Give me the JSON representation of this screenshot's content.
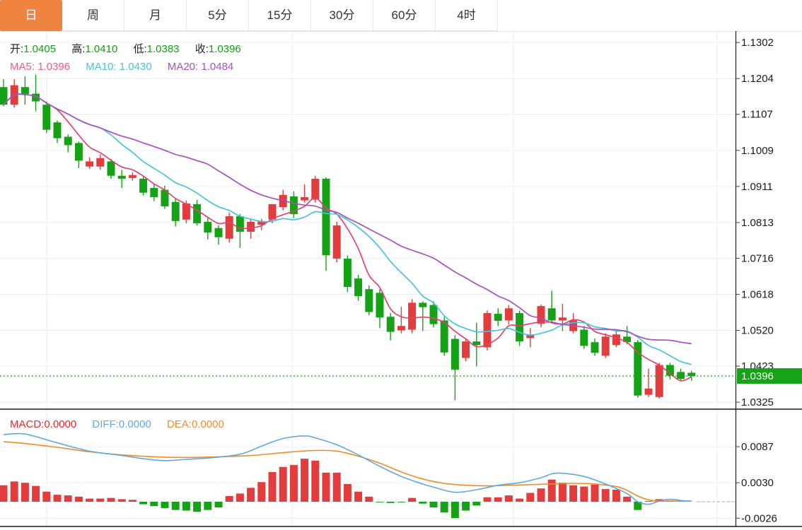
{
  "tabs": [
    {
      "label": "日",
      "active": true
    },
    {
      "label": "周",
      "active": false
    },
    {
      "label": "月",
      "active": false
    },
    {
      "label": "5分",
      "active": false
    },
    {
      "label": "15分",
      "active": false
    },
    {
      "label": "30分",
      "active": false
    },
    {
      "label": "60分",
      "active": false
    },
    {
      "label": "4时",
      "active": false
    }
  ],
  "ohlc_legend": {
    "open_label": "开:",
    "open": "1.0405",
    "high_label": "高:",
    "high": "1.0410",
    "low_label": "低:",
    "low": "1.0383",
    "close_label": "收:",
    "close": "1.0396"
  },
  "ma_legend": {
    "ma5_label": "MA5:",
    "ma5": "1.0396",
    "ma10_label": "MA10:",
    "ma10": "1.0430",
    "ma20_label": "MA20:",
    "ma20": "1.0484"
  },
  "macd_legend": {
    "macd_label": "MACD:",
    "macd": "0.0000",
    "diff_label": "DIFF:",
    "diff": "0.0000",
    "dea_label": "DEA:",
    "dea": "0.0000"
  },
  "price_marker": "1.0396",
  "colors": {
    "up": "#e23c3c",
    "down": "#16a216",
    "ma5": "#e0436e",
    "ma5_text": "#ee5a8a",
    "ma10": "#45c4de",
    "ma20": "#a94fc0",
    "diff": "#63a8dc",
    "dea": "#f08c28",
    "macd_text": "#e02b2b",
    "value_green": "#0fa30f",
    "marker_bg": "#17a317",
    "accent_tab": "#ef8340",
    "grid": "#e9eef4",
    "axis_line": "#1a1a1a",
    "zero_dash": "#d8d8d8",
    "zero_ext_dash": "#8fc1e8"
  },
  "chart_data": [
    {
      "type": "candlestick",
      "title": "日K线 (daily candlestick, EUR/USD-style quote)",
      "ylim": [
        1.0306,
        1.1333
      ],
      "y_ticks": [
        "1.1302",
        "1.1204",
        "1.1107",
        "1.1009",
        "1.0911",
        "1.0813",
        "1.0716",
        "1.0618",
        "1.0520",
        "1.0423",
        "1.0325"
      ],
      "last_price": 1.0396,
      "ma_overlays": [
        {
          "name": "MA5",
          "period": 5,
          "color_key": "ma5"
        },
        {
          "name": "MA10",
          "period": 10,
          "color_key": "ma10"
        },
        {
          "name": "MA20",
          "period": 20,
          "color_key": "ma20"
        }
      ],
      "candles": [
        [
          1.1181,
          1.1202,
          1.1129,
          1.1133
        ],
        [
          1.1133,
          1.1202,
          1.1125,
          1.1186
        ],
        [
          1.1181,
          1.121,
          1.1133,
          1.1162
        ],
        [
          1.1163,
          1.1215,
          1.1115,
          1.1142
        ],
        [
          1.1133,
          1.1142,
          1.1056,
          1.1065
        ],
        [
          1.1085,
          1.109,
          1.1029,
          1.1042
        ],
        [
          1.1046,
          1.1052,
          1.1004,
          1.1023
        ],
        [
          1.1029,
          1.1033,
          1.0961,
          1.0981
        ],
        [
          1.0965,
          1.099,
          1.0959,
          1.0979
        ],
        [
          1.0965,
          1.0998,
          1.0956,
          1.0988
        ],
        [
          1.0979,
          1.0986,
          1.0932,
          1.094
        ],
        [
          1.094,
          1.0956,
          1.0907,
          1.0932
        ],
        [
          1.0934,
          1.095,
          1.0927,
          1.0942
        ],
        [
          1.0932,
          1.094,
          1.0886,
          1.0894
        ],
        [
          1.0907,
          1.0917,
          1.0871,
          1.0882
        ],
        [
          1.0902,
          1.0913,
          1.085,
          1.0857
        ],
        [
          1.0869,
          1.0879,
          1.0802,
          1.0817
        ],
        [
          1.0821,
          1.0873,
          1.0811,
          1.0865
        ],
        [
          1.0863,
          1.0875,
          1.0805,
          1.0811
        ],
        [
          1.0815,
          1.0825,
          1.0767,
          1.0786
        ],
        [
          1.0798,
          1.0805,
          1.0753,
          1.0773
        ],
        [
          1.0769,
          1.084,
          1.0759,
          1.083
        ],
        [
          1.083,
          1.0836,
          1.0744,
          1.0788
        ],
        [
          1.0788,
          1.0821,
          1.0769,
          1.0815
        ],
        [
          1.0807,
          1.0823,
          1.0792,
          1.0817
        ],
        [
          1.0821,
          1.0844,
          1.0811,
          1.0863
        ],
        [
          1.0855,
          1.0902,
          1.0846,
          1.0888
        ],
        [
          1.0884,
          1.0898,
          1.0825,
          1.0836
        ],
        [
          1.0873,
          1.0917,
          1.0867,
          1.0882
        ],
        [
          1.0875,
          1.094,
          1.0867,
          1.0932
        ],
        [
          1.0932,
          1.0936,
          1.0682,
          1.0724
        ],
        [
          1.0715,
          1.0815,
          1.0705,
          1.0805
        ],
        [
          1.0715,
          1.0724,
          1.0624,
          1.0638
        ],
        [
          1.0661,
          1.0671,
          1.0601,
          1.0613
        ],
        [
          1.0632,
          1.0642,
          1.0561,
          1.057
        ],
        [
          1.0622,
          1.0632,
          1.0526,
          1.0555
        ],
        [
          1.0557,
          1.0567,
          1.0493,
          1.0516
        ],
        [
          1.052,
          1.0584,
          1.0512,
          1.0532
        ],
        [
          1.0522,
          1.0605,
          1.0512,
          1.0595
        ],
        [
          1.0595,
          1.0599,
          1.0518,
          1.0583
        ],
        [
          1.0589,
          1.0599,
          1.0528,
          1.0537
        ],
        [
          1.0547,
          1.0557,
          1.0451,
          1.046
        ],
        [
          1.0497,
          1.0507,
          1.033,
          1.0413
        ],
        [
          1.0445,
          1.0499,
          1.0436,
          1.049
        ],
        [
          1.049,
          1.0541,
          1.0422,
          1.048
        ],
        [
          1.0474,
          1.0574,
          1.0465,
          1.0567
        ],
        [
          1.0565,
          1.058,
          1.0532,
          1.0546
        ],
        [
          1.0547,
          1.0589,
          1.0536,
          1.058
        ],
        [
          1.0567,
          1.0574,
          1.0478,
          1.049
        ],
        [
          1.0499,
          1.0526,
          1.0474,
          1.0509
        ],
        [
          1.0538,
          1.059,
          1.0528,
          1.0586
        ],
        [
          1.058,
          1.0628,
          1.0541,
          1.0547
        ],
        [
          1.0547,
          1.0592,
          1.0518,
          1.0555
        ],
        [
          1.0518,
          1.0567,
          1.0512,
          1.0547
        ],
        [
          1.0522,
          1.0532,
          1.047,
          1.0478
        ],
        [
          1.0488,
          1.0498,
          1.0451,
          1.0459
        ],
        [
          1.0451,
          1.0512,
          1.0445,
          1.0503
        ],
        [
          1.048,
          1.0522,
          1.0474,
          1.0509
        ],
        [
          1.0503,
          1.0532,
          1.0482,
          1.0488
        ],
        [
          1.0488,
          1.0494,
          1.0337,
          1.0343
        ],
        [
          1.0345,
          1.0416,
          1.0339,
          1.0362
        ],
        [
          1.0339,
          1.0432,
          1.0335,
          1.0426
        ],
        [
          1.0426,
          1.0432,
          1.0387,
          1.0397
        ],
        [
          1.0407,
          1.0416,
          1.0383,
          1.0388
        ],
        [
          1.0405,
          1.041,
          1.0383,
          1.0396
        ]
      ]
    },
    {
      "type": "bar",
      "title": "MACD(12,26,9)",
      "ylim": [
        -0.00391,
        0.01452
      ],
      "y_ticks": [
        "0.0087",
        "0.0030",
        "-0.0026"
      ],
      "hist": [
        0.0026,
        0.0032,
        0.003,
        0.0025,
        0.0016,
        0.0011,
        0.001,
        0.0008,
        0.0005,
        0.0005,
        0.0006,
        0.0004,
        0.0003,
        -0.0004,
        -0.0007,
        -0.001,
        -0.0013,
        -0.0014,
        -0.0016,
        -0.0013,
        -0.0009,
        0.0009,
        0.0013,
        0.0022,
        0.0031,
        0.0047,
        0.0055,
        0.0058,
        0.0068,
        0.0065,
        0.0046,
        0.0046,
        0.0028,
        0.0016,
        0.0008,
        -0.0001,
        -0.0002,
        -0.0001,
        0.0006,
        -0.0003,
        -0.0009,
        -0.0017,
        -0.0026,
        -0.0014,
        -0.0006,
        0.0007,
        0.0007,
        0.001,
        0.0005,
        0.0014,
        0.0021,
        0.0035,
        0.003,
        0.0026,
        0.0024,
        0.0027,
        0.002,
        0.0019,
        0.0008,
        -0.0013,
        0.0001,
        0.0004,
        0.0002,
        0.0001,
        0.0
      ],
      "diff_points": [
        [
          0,
          0.0106
        ],
        [
          2,
          0.0107
        ],
        [
          5,
          0.0093
        ],
        [
          8,
          0.008
        ],
        [
          11,
          0.0073
        ],
        [
          13,
          0.0068
        ],
        [
          15,
          0.0065
        ],
        [
          17,
          0.0067
        ],
        [
          19,
          0.0069
        ],
        [
          22,
          0.0075
        ],
        [
          24,
          0.0088
        ],
        [
          26,
          0.01
        ],
        [
          28,
          0.0104
        ],
        [
          29,
          0.0101
        ],
        [
          31,
          0.009
        ],
        [
          33,
          0.0074
        ],
        [
          35,
          0.0056
        ],
        [
          37,
          0.004
        ],
        [
          39,
          0.0028
        ],
        [
          40,
          0.0023
        ],
        [
          42,
          0.0015
        ],
        [
          44,
          0.0019
        ],
        [
          46,
          0.0026
        ],
        [
          48,
          0.003
        ],
        [
          50,
          0.0038
        ],
        [
          51,
          0.0044
        ],
        [
          52,
          0.0045
        ],
        [
          54,
          0.004
        ],
        [
          56,
          0.0028
        ],
        [
          58,
          0.0013
        ],
        [
          59,
          0.0
        ],
        [
          60,
          -0.0004
        ],
        [
          61,
          0.0001
        ],
        [
          62,
          0.0004
        ],
        [
          63,
          0.0002
        ],
        [
          64,
          0.0001
        ]
      ],
      "dea_points": [
        [
          0,
          0.0095
        ],
        [
          2,
          0.0092
        ],
        [
          5,
          0.0086
        ],
        [
          8,
          0.0079
        ],
        [
          11,
          0.0074
        ],
        [
          14,
          0.0071
        ],
        [
          17,
          0.007
        ],
        [
          20,
          0.0071
        ],
        [
          23,
          0.0073
        ],
        [
          25,
          0.0076
        ],
        [
          27,
          0.0079
        ],
        [
          29,
          0.0081
        ],
        [
          31,
          0.008
        ],
        [
          33,
          0.0072
        ],
        [
          35,
          0.0061
        ],
        [
          37,
          0.0047
        ],
        [
          39,
          0.0036
        ],
        [
          41,
          0.0029
        ],
        [
          43,
          0.0026
        ],
        [
          45,
          0.0025
        ],
        [
          47,
          0.0026
        ],
        [
          49,
          0.0027
        ],
        [
          51,
          0.0028
        ],
        [
          53,
          0.0029
        ],
        [
          55,
          0.0028
        ],
        [
          57,
          0.0024
        ],
        [
          58,
          0.0018
        ],
        [
          59,
          0.0009
        ],
        [
          60,
          0.0003
        ],
        [
          61,
          0.0001
        ],
        [
          62,
          0.0001
        ],
        [
          63,
          0.0001
        ],
        [
          64,
          0.0001
        ]
      ]
    }
  ]
}
